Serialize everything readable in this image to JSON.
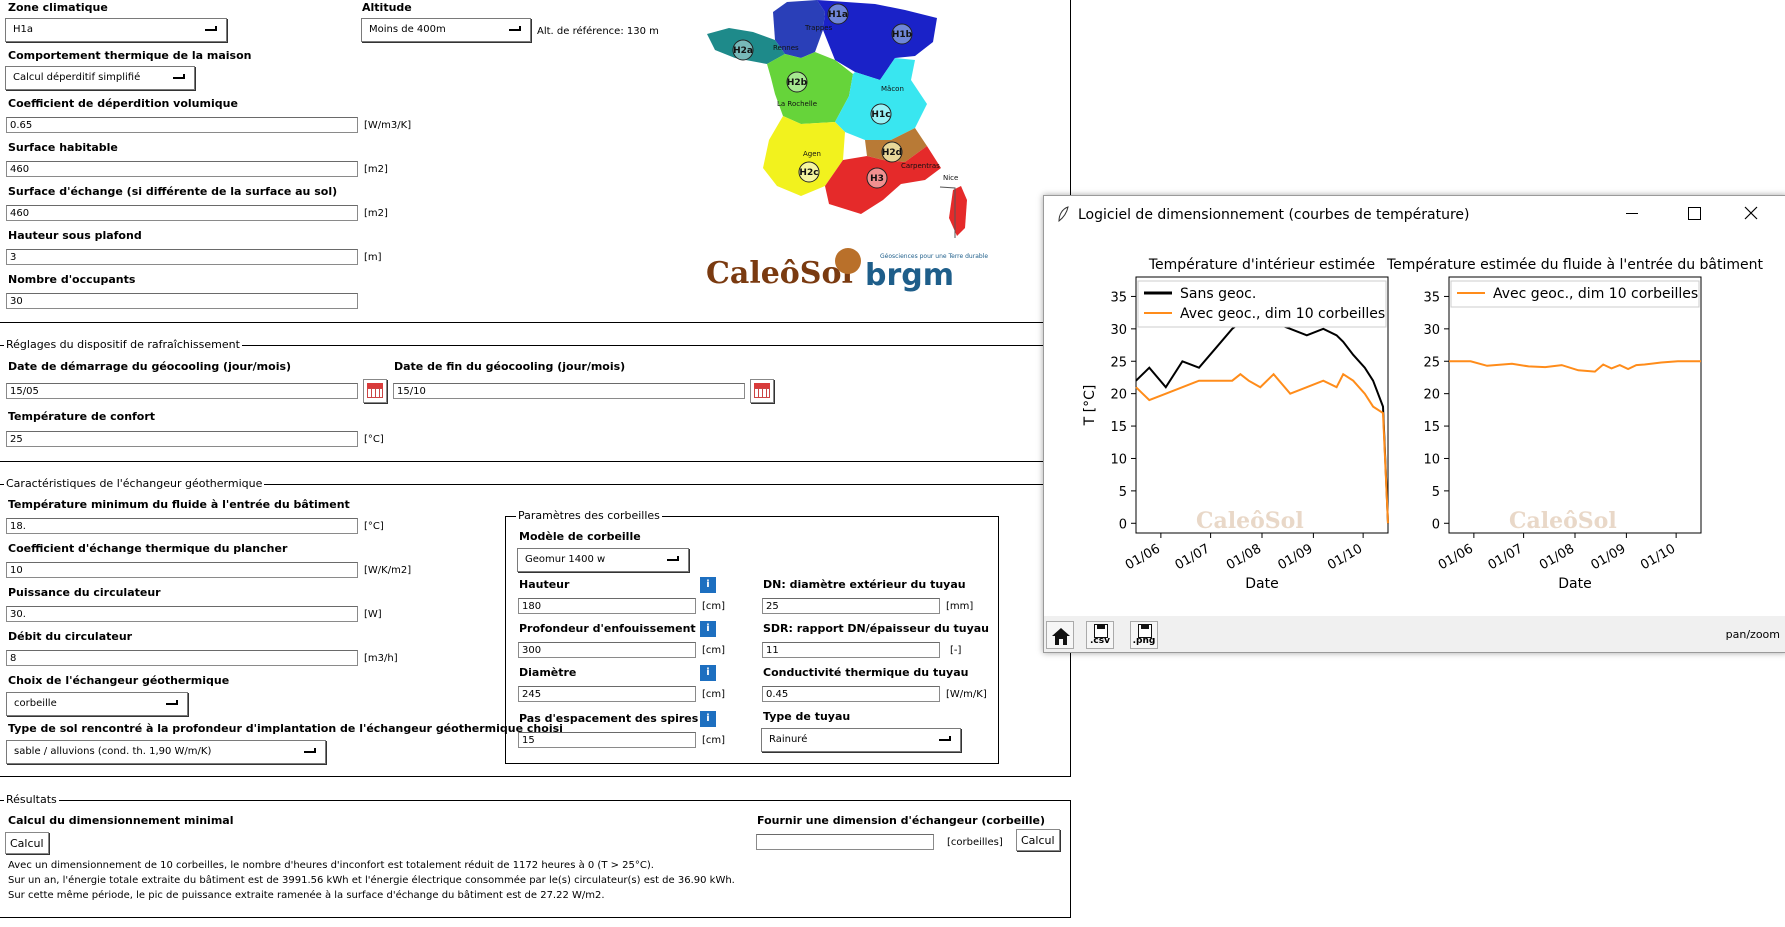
{
  "climate": {
    "zone_label": "Zone climatique",
    "zone_value": "H1a",
    "altitude_label": "Altitude",
    "altitude_value": "Moins de 400m",
    "alt_ref": "Alt. de référence: 130 m",
    "behavior_label": "Comportement thermique de la maison",
    "behavior_value": "Calcul déperditif simplifié",
    "coef_label": "Coefficient de déperdition volumique",
    "coef_value": "0.65",
    "coef_unit": "[W/m3/K]",
    "surface_label": "Surface habitable",
    "surface_value": "460",
    "surface_unit": "[m2]",
    "exchange_label": "Surface d'échange (si différente de la surface au sol)",
    "exchange_value": "460",
    "exchange_unit": "[m2]",
    "height_label": "Hauteur sous plafond",
    "height_value": "3",
    "height_unit": "[m]",
    "occupants_label": "Nombre d'occupants",
    "occupants_value": "30"
  },
  "map": {
    "zones": [
      "H1a",
      "H1b",
      "H1c",
      "H2a",
      "H2b",
      "H2c",
      "H2d",
      "H3"
    ],
    "cities": [
      "Trappes",
      "Rennes",
      "Mâcon",
      "La Rochelle",
      "Agen",
      "Carpentras",
      "Nice"
    ],
    "logo_text": "CaleôSol",
    "brgm_text": "brgm",
    "brgm_tagline": "Géosciences pour une Terre durable",
    "colors": {
      "h1a": "#2a3fb8",
      "h1b": "#1a22c8",
      "h1c": "#39e6f0",
      "h2a": "#1e8a8a",
      "h2b": "#66d43a",
      "h2c": "#f2f21e",
      "h2d": "#b87a36",
      "h3": "#e52a2a"
    }
  },
  "cooling": {
    "group_title": "Réglages du dispositif de rafraîchissement",
    "start_label": "Date de démarrage du géocooling (jour/mois)",
    "start_value": "15/05",
    "end_label": "Date de fin du géocooling (jour/mois)",
    "end_value": "15/10",
    "comfort_label": "Température de confort",
    "comfort_value": "25",
    "comfort_unit": "[°C]"
  },
  "exchanger": {
    "group_title": "Caractéristiques de l'échangeur géothermique",
    "tmin_label": "Température minimum du fluide à l'entrée du bâtiment",
    "tmin_value": "18.",
    "tmin_unit": "[°C]",
    "floor_label": "Coefficient d'échange thermique du plancher",
    "floor_value": "10",
    "floor_unit": "[W/K/m2]",
    "power_label": "Puissance du circulateur",
    "power_value": "30.",
    "power_unit": "[W]",
    "flow_label": "Débit du circulateur",
    "flow_value": "8",
    "flow_unit": "[m3/h]",
    "choice_label": "Choix de l'échangeur géothermique",
    "choice_value": "corbeille",
    "soil_label": "Type de sol rencontré à la profondeur d'implantation de l'échangeur géothermique choisi",
    "soil_value": "sable / alluvions (cond. th. 1,90 W/m/K)"
  },
  "baskets": {
    "group_title": "Paramètres des corbeilles",
    "model_label": "Modèle de corbeille",
    "model_value": "Geomur 1400 w",
    "info_glyph": "i",
    "height_label": "Hauteur",
    "height_value": "180",
    "height_unit": "[cm]",
    "depth_label": "Profondeur d'enfouissement",
    "depth_value": "300",
    "depth_unit": "[cm]",
    "diam_label": "Diamètre",
    "diam_value": "245",
    "diam_unit": "[cm]",
    "pitch_label": "Pas d'espacement des spires",
    "pitch_value": "15",
    "pitch_unit": "[cm]",
    "dn_label": "DN: diamètre extérieur du tuyau",
    "dn_value": "25",
    "dn_unit": "[mm]",
    "sdr_label": "SDR: rapport DN/épaisseur du tuyau",
    "sdr_value": "11",
    "sdr_unit": "[-]",
    "cond_label": "Conductivité thermique du tuyau",
    "cond_value": "0.45",
    "cond_unit": "[W/m/K]",
    "pipe_label": "Type de tuyau",
    "pipe_value": "Rainuré"
  },
  "results": {
    "group_title": "Résultats",
    "min_label": "Calcul du dimensionnement minimal",
    "calc_button": "Calcul",
    "given_label": "Fournir une dimension d'échangeur (corbeille)",
    "given_value": "",
    "given_unit": "[corbeilles]",
    "calc_button2": "Calcul",
    "line1": "Avec un dimensionnement de 10 corbeilles, le nombre d'heures d'inconfort est totalement réduit de 1172 heures à 0 (T > 25°C).",
    "line2": "Sur un an, l'énergie totale extraite du bâtiment est de 3991.56 kWh et l'énergie électrique consommée par le(s) circulateur(s) est de 36.90 kWh.",
    "line3": "Sur cette même période, le pic de puissance extraite ramenée à la surface d'échange du bâtiment est de 27.22 W/m2."
  },
  "plot_window": {
    "title": "Logiciel de dimensionnement (courbes de température)",
    "status": "pan/zoom",
    "toolbar": [
      {
        "name": "home-icon",
        "caption": ""
      },
      {
        "name": "save-csv-icon",
        "caption": ".csv"
      },
      {
        "name": "save-png-icon",
        "caption": ".png"
      }
    ],
    "watermark": "CaleôSol"
  },
  "chart_data": [
    {
      "type": "line",
      "title": "Température d'intérieur estimée",
      "xlabel": "Date",
      "ylabel": "T [°C]",
      "xticks": [
        "01/06",
        "01/07",
        "01/08",
        "01/09",
        "01/10"
      ],
      "yticks": [
        0,
        5,
        10,
        15,
        20,
        25,
        30,
        35
      ],
      "ylim": [
        -1.5,
        38
      ],
      "xlim_days": [
        137,
        289
      ],
      "legend": "top-right",
      "series": [
        {
          "name": "Sans geoc.",
          "color": "#000000",
          "x": [
            137,
            145,
            155,
            165,
            175,
            185,
            195,
            200,
            205,
            212,
            220,
            230,
            240,
            250,
            258,
            262,
            268,
            275,
            280,
            286,
            289
          ],
          "y": [
            22,
            24,
            21,
            25,
            24,
            27,
            30,
            31,
            34,
            33,
            31,
            30,
            29,
            30,
            29,
            28,
            26,
            24,
            22,
            18,
            0
          ]
        },
        {
          "name": "Avec geoc., dim 10 corbeilles",
          "color": "#ff8c1a",
          "x": [
            137,
            145,
            155,
            165,
            175,
            185,
            195,
            200,
            205,
            212,
            220,
            230,
            240,
            250,
            258,
            262,
            268,
            275,
            280,
            286,
            289
          ],
          "y": [
            21,
            19,
            20,
            21,
            22,
            22,
            22,
            23,
            22,
            21,
            23,
            20,
            21,
            22,
            21,
            23,
            22,
            20,
            18,
            17,
            0
          ]
        }
      ]
    },
    {
      "type": "line",
      "title": "Température estimée du fluide à l'entrée du bâtiment",
      "xlabel": "Date",
      "ylabel": "",
      "xticks": [
        "01/06",
        "01/07",
        "01/08",
        "01/09",
        "01/10"
      ],
      "yticks": [
        0,
        5,
        10,
        15,
        20,
        25,
        30,
        35
      ],
      "ylim": [
        -1.5,
        38
      ],
      "xlim_days": [
        137,
        289
      ],
      "legend": "top-right",
      "series": [
        {
          "name": "Avec geoc., dim 10 corbeilles",
          "color": "#ff8c1a",
          "x": [
            137,
            150,
            160,
            175,
            185,
            195,
            205,
            215,
            225,
            230,
            235,
            240,
            245,
            250,
            255,
            265,
            275,
            289
          ],
          "y": [
            25,
            25,
            24.3,
            24.6,
            24.2,
            24.1,
            24.4,
            23.6,
            23.4,
            24.5,
            23.9,
            24.4,
            23.8,
            24.4,
            24.5,
            24.8,
            25,
            25
          ]
        }
      ]
    }
  ]
}
